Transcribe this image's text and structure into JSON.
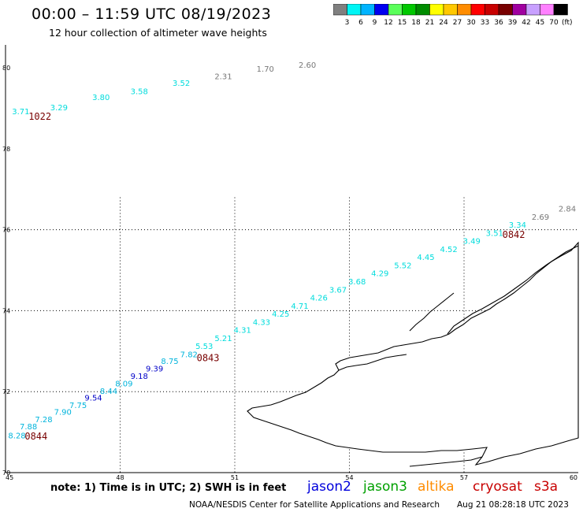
{
  "title": "00:00 – 11:59 UTC 08/19/2023",
  "subtitle": "12 hour collection of altimeter wave heights",
  "colorbar": {
    "unit": "(ft)",
    "ticks": [
      "3",
      "6",
      "9",
      "12",
      "15",
      "18",
      "21",
      "24",
      "27",
      "30",
      "33",
      "36",
      "39",
      "42",
      "45",
      "70"
    ],
    "colors": [
      "#808080",
      "#00f5f5",
      "#00b4ff",
      "#0000f0",
      "#5aff5a",
      "#00c800",
      "#008c00",
      "#ffff00",
      "#ffc800",
      "#ff8c00",
      "#ff0000",
      "#c80000",
      "#780000",
      "#a000a0",
      "#c8a0ff",
      "#ff80ff",
      "#000000"
    ]
  },
  "axes": {
    "lat_labels": [
      "80",
      "78",
      "76",
      "74",
      "72",
      "70"
    ],
    "lon_labels": [
      "45",
      "48",
      "51",
      "54",
      "57",
      "60"
    ]
  },
  "points": [
    {
      "lon": 45.4,
      "lat": 78.85,
      "v": "3.71",
      "c": "#00dcdc"
    },
    {
      "lon": 46.4,
      "lat": 78.95,
      "v": "3.29",
      "c": "#00dcdc"
    },
    {
      "lon": 47.5,
      "lat": 79.2,
      "v": "3.80",
      "c": "#00dcdc"
    },
    {
      "lon": 48.5,
      "lat": 79.35,
      "v": "3.58",
      "c": "#00dcdc"
    },
    {
      "lon": 49.6,
      "lat": 79.55,
      "v": "3.52",
      "c": "#00dcdc"
    },
    {
      "lon": 50.7,
      "lat": 79.72,
      "v": "2.31",
      "c": "#787878"
    },
    {
      "lon": 51.8,
      "lat": 79.9,
      "v": "1.70",
      "c": "#787878"
    },
    {
      "lon": 52.9,
      "lat": 80.0,
      "v": "2.60",
      "c": "#787878"
    },
    {
      "lon": 45.3,
      "lat": 70.85,
      "v": "8.28",
      "c": "#00b4dc"
    },
    {
      "lon": 45.6,
      "lat": 71.07,
      "v": "7.88",
      "c": "#00b4dc"
    },
    {
      "lon": 46.0,
      "lat": 71.25,
      "v": "7.28",
      "c": "#00b4dc"
    },
    {
      "lon": 46.5,
      "lat": 71.43,
      "v": "7.90",
      "c": "#00b4dc"
    },
    {
      "lon": 46.9,
      "lat": 71.6,
      "v": "7.75",
      "c": "#00b4dc"
    },
    {
      "lon": 47.3,
      "lat": 71.78,
      "v": "9.54",
      "c": "#0000c8"
    },
    {
      "lon": 47.7,
      "lat": 71.95,
      "v": "8.44",
      "c": "#00b4dc"
    },
    {
      "lon": 48.1,
      "lat": 72.13,
      "v": "8.09",
      "c": "#00b4dc"
    },
    {
      "lon": 48.5,
      "lat": 72.32,
      "v": "9.18",
      "c": "#0000c8"
    },
    {
      "lon": 48.9,
      "lat": 72.5,
      "v": "9.39",
      "c": "#0000c8"
    },
    {
      "lon": 49.3,
      "lat": 72.68,
      "v": "8.75",
      "c": "#00b4dc"
    },
    {
      "lon": 49.8,
      "lat": 72.85,
      "v": "7.82",
      "c": "#00b4dc"
    },
    {
      "lon": 50.2,
      "lat": 73.05,
      "v": "5.53",
      "c": "#00dcdc"
    },
    {
      "lon": 50.7,
      "lat": 73.25,
      "v": "5.21",
      "c": "#00dcdc"
    },
    {
      "lon": 51.2,
      "lat": 73.45,
      "v": "4.31",
      "c": "#00dcdc"
    },
    {
      "lon": 51.7,
      "lat": 73.65,
      "v": "4.33",
      "c": "#00dcdc"
    },
    {
      "lon": 52.2,
      "lat": 73.85,
      "v": "4.25",
      "c": "#00dcdc"
    },
    {
      "lon": 52.7,
      "lat": 74.05,
      "v": "4.71",
      "c": "#00dcdc"
    },
    {
      "lon": 53.2,
      "lat": 74.25,
      "v": "4.26",
      "c": "#00dcdc"
    },
    {
      "lon": 53.7,
      "lat": 74.45,
      "v": "3.67",
      "c": "#00dcdc"
    },
    {
      "lon": 54.2,
      "lat": 74.65,
      "v": "3.68",
      "c": "#00dcdc"
    },
    {
      "lon": 54.8,
      "lat": 74.85,
      "v": "4.29",
      "c": "#00dcdc"
    },
    {
      "lon": 55.4,
      "lat": 75.05,
      "v": "5.52",
      "c": "#00dcdc"
    },
    {
      "lon": 56.0,
      "lat": 75.25,
      "v": "4.45",
      "c": "#00dcdc"
    },
    {
      "lon": 56.6,
      "lat": 75.45,
      "v": "4.52",
      "c": "#00dcdc"
    },
    {
      "lon": 57.2,
      "lat": 75.65,
      "v": "3.49",
      "c": "#00dcdc"
    },
    {
      "lon": 57.8,
      "lat": 75.85,
      "v": "3.51",
      "c": "#00dcdc"
    },
    {
      "lon": 58.4,
      "lat": 76.05,
      "v": "3.34",
      "c": "#00dcdc"
    },
    {
      "lon": 59.0,
      "lat": 76.25,
      "v": "2.69",
      "c": "#787878"
    },
    {
      "lon": 59.7,
      "lat": 76.45,
      "v": "2.84",
      "c": "#787878"
    }
  ],
  "times": [
    {
      "lon": 45.9,
      "lat": 78.72,
      "t": "1022"
    },
    {
      "lon": 58.3,
      "lat": 75.8,
      "t": "0842"
    },
    {
      "lon": 50.3,
      "lat": 72.75,
      "t": "0843"
    },
    {
      "lon": 45.8,
      "lat": 70.82,
      "t": "0844"
    }
  ],
  "note": "note:  1) Time is in UTC;  2) SWH is in feet",
  "legend": [
    {
      "label": "jason2",
      "color": "#0000dc"
    },
    {
      "label": "jason3",
      "color": "#00a000"
    },
    {
      "label": "altika",
      "color": "#ff8c00"
    },
    {
      "label": "cryosat",
      "color": "#c80000"
    },
    {
      "label": "s3a",
      "color": "#c80000"
    }
  ],
  "footer": {
    "left": "NOAA/NESDIS Center for Satellite Applications and Research",
    "right": "Aug 21 08:28:18 UTC 2023"
  }
}
